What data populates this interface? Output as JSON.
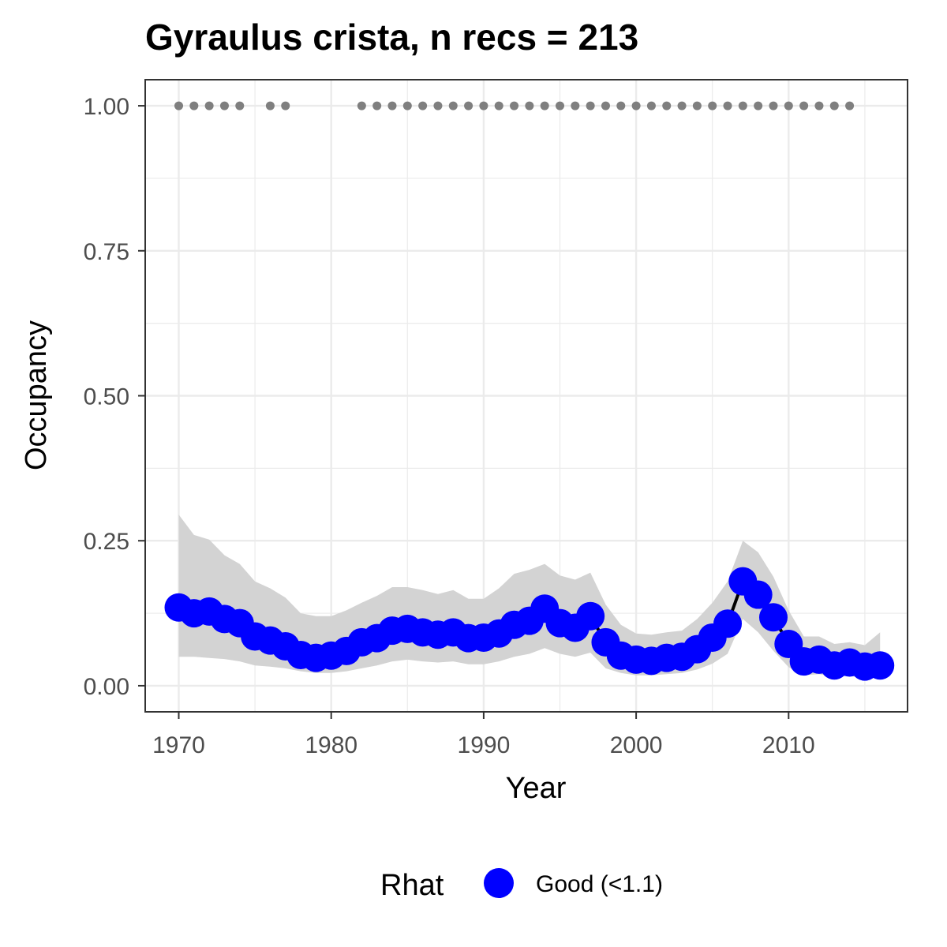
{
  "chart_data": {
    "type": "line",
    "title": "Gyraulus crista, n recs = 213",
    "xlabel": "Year",
    "ylabel": "Occupancy",
    "xlim": [
      1967.8,
      2017.8
    ],
    "ylim": [
      -0.045,
      1.045
    ],
    "x_ticks": [
      1970,
      1980,
      1990,
      2000,
      2010
    ],
    "x_tick_labels": [
      "1970",
      "1980",
      "1990",
      "2000",
      "2010"
    ],
    "y_ticks": [
      0,
      0.25,
      0.5,
      0.75,
      1.0
    ],
    "y_tick_labels": [
      "0.00",
      "0.25",
      "0.50",
      "0.75",
      "1.00"
    ],
    "grid": true,
    "legend_position": "bottom",
    "legend": {
      "title": "Rhat",
      "entries": [
        {
          "label": "Good (<1.1)",
          "color": "#0000ff"
        }
      ]
    },
    "colors": {
      "points": "#0000ff",
      "line": "#000000",
      "ribbon": "#d3d3d3",
      "records": "#7f7f7f",
      "grid": "#ebebeb",
      "panel_border": "#333333"
    },
    "series": [
      {
        "name": "Good (<1.1)",
        "x": [
          1970,
          1971,
          1972,
          1973,
          1974,
          1975,
          1976,
          1977,
          1978,
          1979,
          1980,
          1981,
          1982,
          1983,
          1984,
          1985,
          1986,
          1987,
          1988,
          1989,
          1990,
          1991,
          1992,
          1993,
          1994,
          1995,
          1996,
          1997,
          1998,
          1999,
          2000,
          2001,
          2002,
          2003,
          2004,
          2005,
          2006,
          2007,
          2008,
          2009,
          2010,
          2011,
          2012,
          2013,
          2014,
          2015,
          2016
        ],
        "y": [
          0.135,
          0.125,
          0.128,
          0.115,
          0.108,
          0.085,
          0.078,
          0.068,
          0.053,
          0.048,
          0.052,
          0.06,
          0.075,
          0.082,
          0.095,
          0.098,
          0.092,
          0.088,
          0.092,
          0.082,
          0.083,
          0.09,
          0.105,
          0.112,
          0.133,
          0.108,
          0.1,
          0.12,
          0.075,
          0.052,
          0.045,
          0.043,
          0.048,
          0.05,
          0.063,
          0.083,
          0.107,
          0.18,
          0.157,
          0.118,
          0.072,
          0.042,
          0.045,
          0.035,
          0.04,
          0.033,
          0.035
        ],
        "lower": [
          0.05,
          0.05,
          0.048,
          0.046,
          0.042,
          0.035,
          0.033,
          0.03,
          0.025,
          0.022,
          0.022,
          0.025,
          0.03,
          0.035,
          0.042,
          0.045,
          0.042,
          0.04,
          0.042,
          0.037,
          0.037,
          0.042,
          0.05,
          0.055,
          0.065,
          0.055,
          0.05,
          0.057,
          0.03,
          0.022,
          0.018,
          0.018,
          0.02,
          0.022,
          0.028,
          0.038,
          0.055,
          0.115,
          0.092,
          0.06,
          0.032,
          0.018,
          0.02,
          0.015,
          0.017,
          0.013,
          0.015
        ],
        "upper": [
          0.295,
          0.26,
          0.252,
          0.225,
          0.21,
          0.18,
          0.168,
          0.152,
          0.125,
          0.12,
          0.12,
          0.13,
          0.143,
          0.155,
          0.17,
          0.17,
          0.165,
          0.158,
          0.165,
          0.15,
          0.15,
          0.168,
          0.193,
          0.2,
          0.21,
          0.19,
          0.183,
          0.195,
          0.14,
          0.105,
          0.09,
          0.088,
          0.092,
          0.095,
          0.115,
          0.143,
          0.18,
          0.25,
          0.23,
          0.188,
          0.13,
          0.085,
          0.085,
          0.072,
          0.075,
          0.07,
          0.092
        ]
      }
    ],
    "record_years": [
      1970,
      1971,
      1972,
      1973,
      1974,
      1976,
      1977,
      1982,
      1983,
      1984,
      1985,
      1986,
      1987,
      1988,
      1989,
      1990,
      1991,
      1992,
      1993,
      1994,
      1995,
      1996,
      1997,
      1998,
      1999,
      2000,
      2001,
      2002,
      2003,
      2004,
      2005,
      2006,
      2007,
      2008,
      2009,
      2010,
      2011,
      2012,
      2013,
      2014
    ],
    "record_value": 1.0
  }
}
